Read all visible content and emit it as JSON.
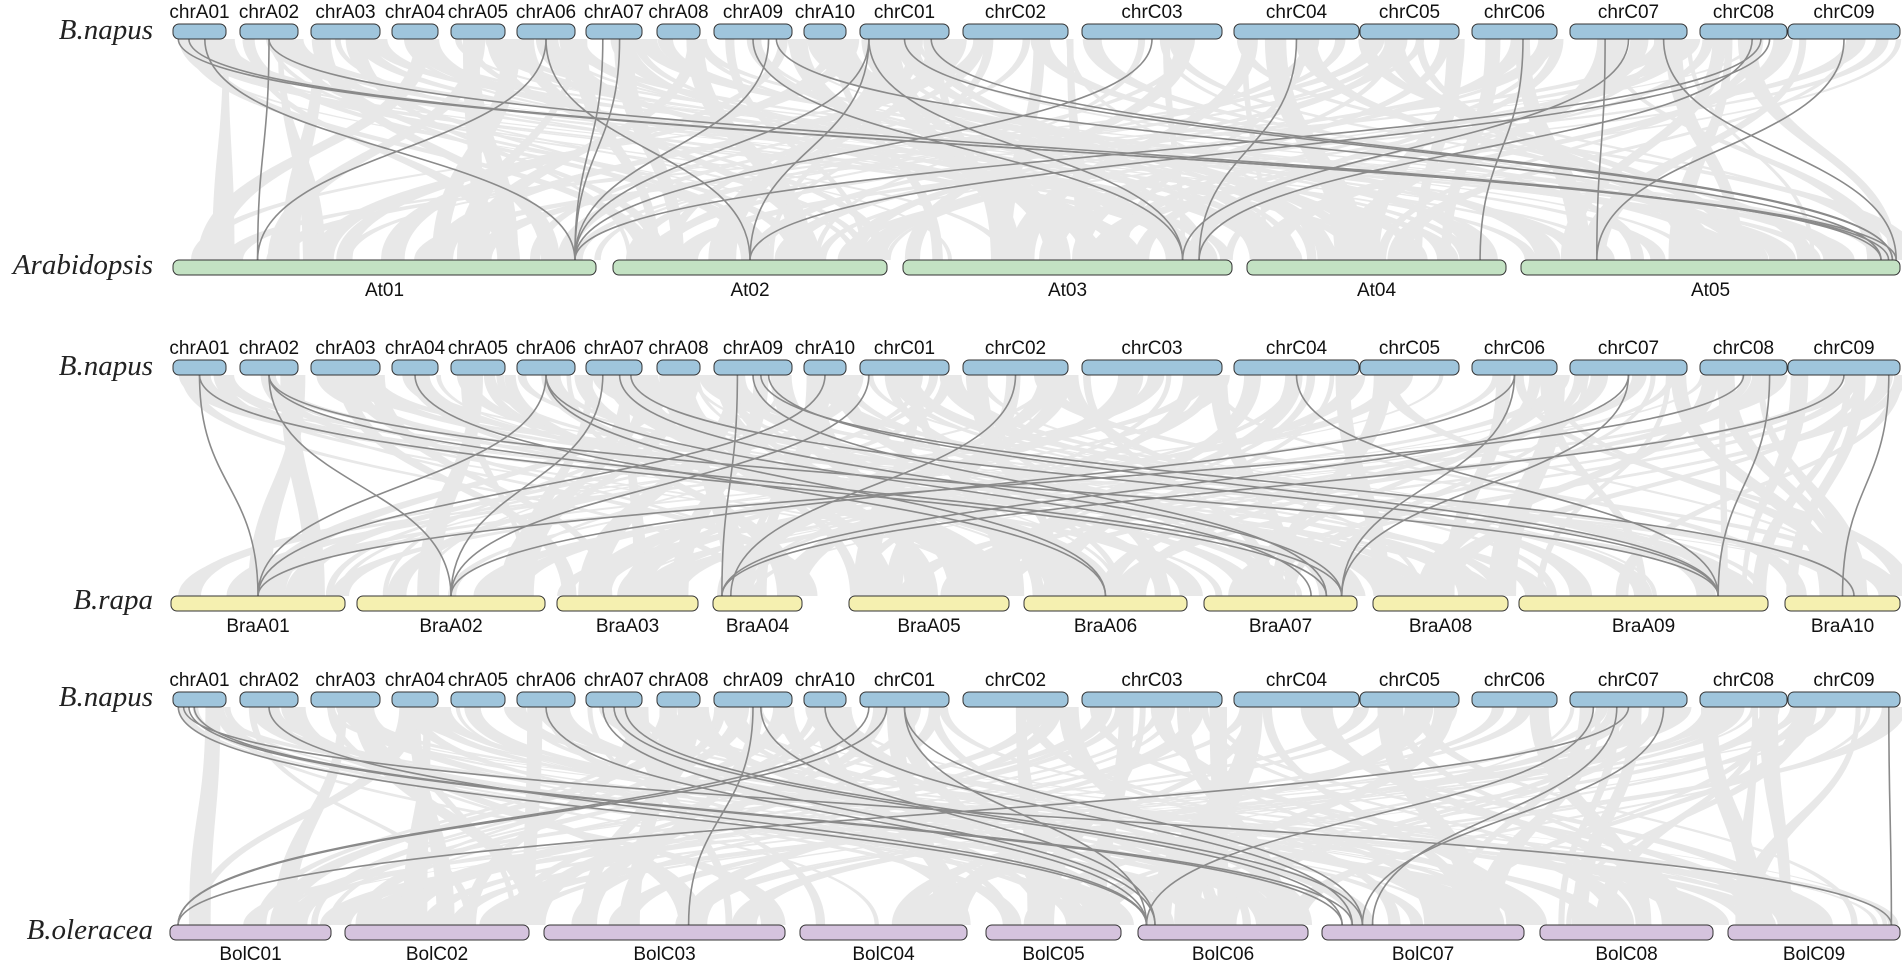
{
  "figure": {
    "type": "synteny-diagram",
    "colors": {
      "background_links": "#d9d9d9",
      "background_links_opacity": 0.6,
      "highlight_links": "#8a8a8a",
      "chr_outline": "#333333"
    },
    "panels": [
      {
        "top": {
          "species": "B.napus",
          "color": "#9fc5dc",
          "chromosomes": [
            "chrA01",
            "chrA02",
            "chrA03",
            "chrA04",
            "chrA05",
            "chrA06",
            "chrA07",
            "chrA08",
            "chrA09",
            "chrA10",
            "chrC01",
            "chrC02",
            "chrC03",
            "chrC04",
            "chrC05",
            "chrC06",
            "chrC07",
            "chrC08",
            "chrC09"
          ]
        },
        "bottom": {
          "species": "Arabidopsis",
          "color": "#c3e2c3",
          "chromosomes": [
            "At01",
            "At02",
            "At03",
            "At04",
            "At05"
          ]
        },
        "links": [
          [
            "chrA01",
            0.1,
            "At05",
            0.99
          ],
          [
            "chrA01",
            0.3,
            "At05",
            0.97
          ],
          [
            "chrA01",
            0.6,
            "At01",
            0.95
          ],
          [
            "chrA02",
            0.5,
            "At01",
            0.2
          ],
          [
            "chrA02",
            0.5,
            "At05",
            0.95
          ],
          [
            "chrA06",
            0.5,
            "At01",
            0.2
          ],
          [
            "chrA06",
            0.5,
            "At02",
            0.5
          ],
          [
            "chrA07",
            0.3,
            "At01",
            0.95
          ],
          [
            "chrA07",
            0.6,
            "At01",
            0.95
          ],
          [
            "chrA09",
            0.5,
            "At03",
            0.85
          ],
          [
            "chrA09",
            0.8,
            "At05",
            0.95
          ],
          [
            "chrC01",
            0.1,
            "At01",
            0.95
          ],
          [
            "chrC01",
            0.1,
            "At02",
            0.5
          ],
          [
            "chrC01",
            0.1,
            "At03",
            0.85
          ],
          [
            "chrC01",
            0.5,
            "At05",
            0.98
          ],
          [
            "chrC01",
            0.8,
            "At05",
            0.98
          ],
          [
            "chrC03",
            0.5,
            "At01",
            0.95
          ],
          [
            "chrC04",
            0.5,
            "At03",
            0.9
          ],
          [
            "chrC06",
            0.6,
            "At04",
            0.9
          ],
          [
            "chrC07",
            0.5,
            "At03",
            0.85
          ],
          [
            "chrC07",
            0.3,
            "At05",
            0.2
          ],
          [
            "chrC08",
            0.7,
            "At01",
            0.95
          ],
          [
            "chrC08",
            0.8,
            "At02",
            0.5
          ],
          [
            "chrC08",
            0.6,
            "At03",
            0.9
          ],
          [
            "chrC09",
            0.5,
            "At05",
            0.2
          ],
          [
            "chrA09",
            0.7,
            "At01",
            0.95
          ],
          [
            "chrC07",
            0.8,
            "At05",
            0.99
          ]
        ]
      },
      {
        "top": {
          "species": "B.napus",
          "color": "#9fc5dc",
          "chromosomes": [
            "chrA01",
            "chrA02",
            "chrA03",
            "chrA04",
            "chrA05",
            "chrA06",
            "chrA07",
            "chrA08",
            "chrA09",
            "chrA10",
            "chrC01",
            "chrC02",
            "chrC03",
            "chrC04",
            "chrC05",
            "chrC06",
            "chrC07",
            "chrC08",
            "chrC09"
          ]
        },
        "bottom": {
          "species": "B.rapa",
          "color": "#f5f0b0",
          "chromosomes": [
            "BraA01",
            "BraA02",
            "BraA03",
            "BraA04",
            "BraA05",
            "BraA06",
            "BraA07",
            "BraA08",
            "BraA09",
            "BraA10"
          ]
        },
        "links": [
          [
            "chrA01",
            0.5,
            "BraA01",
            0.5
          ],
          [
            "chrA01",
            0.5,
            "BraA07",
            0.8
          ],
          [
            "chrA02",
            0.5,
            "BraA02",
            0.5
          ],
          [
            "chrA02",
            0.5,
            "BraA07",
            0.9
          ],
          [
            "chrA02",
            0.5,
            "BraA09",
            0.8
          ],
          [
            "chrA06",
            0.5,
            "BraA01",
            0.5
          ],
          [
            "chrA06",
            0.5,
            "BraA06",
            0.5
          ],
          [
            "chrA06",
            0.5,
            "BraA07",
            0.7
          ],
          [
            "chrA07",
            0.3,
            "BraA02",
            0.5
          ],
          [
            "chrA07",
            0.6,
            "BraA07",
            0.9
          ],
          [
            "chrA07",
            0.8,
            "BraA09",
            0.8
          ],
          [
            "chrA09",
            0.3,
            "BraA04",
            0.1
          ],
          [
            "chrA09",
            0.5,
            "BraA07",
            0.8
          ],
          [
            "chrA09",
            0.7,
            "BraA09",
            0.8
          ],
          [
            "chrA10",
            0.5,
            "BraA01",
            0.5
          ],
          [
            "chrC01",
            0.1,
            "BraA02",
            0.5
          ],
          [
            "chrC02",
            0.5,
            "BraA04",
            0.2
          ],
          [
            "chrC04",
            0.5,
            "BraA09",
            0.8
          ],
          [
            "chrC06",
            0.5,
            "BraA02",
            0.5
          ],
          [
            "chrC06",
            0.5,
            "BraA07",
            0.9
          ],
          [
            "chrC07",
            0.5,
            "BraA04",
            0.1
          ],
          [
            "chrC07",
            0.5,
            "BraA07",
            0.9
          ],
          [
            "chrC08",
            0.5,
            "BraA01",
            0.5
          ],
          [
            "chrC08",
            0.8,
            "BraA09",
            0.8
          ],
          [
            "chrC09",
            0.5,
            "BraA04",
            0.1
          ],
          [
            "chrC09",
            0.9,
            "BraA10",
            0.5
          ],
          [
            "chrA04",
            0.5,
            "BraA06",
            0.5
          ],
          [
            "chrA09",
            0.6,
            "BraA10",
            0.6
          ]
        ]
      },
      {
        "top": {
          "species": "B.napus",
          "color": "#9fc5dc",
          "chromosomes": [
            "chrA01",
            "chrA02",
            "chrA03",
            "chrA04",
            "chrA05",
            "chrA06",
            "chrA07",
            "chrA08",
            "chrA09",
            "chrA10",
            "chrC01",
            "chrC02",
            "chrC03",
            "chrC04",
            "chrC05",
            "chrC06",
            "chrC07",
            "chrC08",
            "chrC09"
          ]
        },
        "bottom": {
          "species": "B.oleracea",
          "color": "#d5c3de",
          "chromosomes": [
            "BolC01",
            "BolC02",
            "BolC03",
            "BolC04",
            "BolC05",
            "BolC06",
            "BolC07",
            "BolC08",
            "BolC09"
          ]
        },
        "links": [
          [
            "chrA01",
            0.1,
            "BolC06",
            0.05
          ],
          [
            "chrA01",
            0.3,
            "BolC07",
            0.1
          ],
          [
            "chrA02",
            0.5,
            "BolC06",
            0.05
          ],
          [
            "chrA06",
            0.5,
            "BolC06",
            0.05
          ],
          [
            "chrA07",
            0.3,
            "BolC06",
            0.1
          ],
          [
            "chrA07",
            0.5,
            "BolC07",
            0.1
          ],
          [
            "chrA07",
            0.7,
            "BolC07",
            0.2
          ],
          [
            "chrA09",
            0.5,
            "BolC03",
            0.6
          ],
          [
            "chrA10",
            0.5,
            "BolC07",
            0.15
          ],
          [
            "chrC01",
            0.1,
            "BolC01",
            0.05
          ],
          [
            "chrC01",
            0.5,
            "BolC06",
            0.05
          ],
          [
            "chrC01",
            0.5,
            "BolC07",
            0.2
          ],
          [
            "chrC07",
            0.5,
            "BolC01",
            0.05
          ],
          [
            "chrC07",
            0.2,
            "BolC06",
            0.05
          ],
          [
            "chrC07",
            0.8,
            "BolC07",
            0.2
          ],
          [
            "chrC07",
            0.4,
            "BolC07",
            0.25
          ],
          [
            "chrC09",
            0.9,
            "BolC09",
            0.95
          ],
          [
            "chrA01",
            0.2,
            "BolC09",
            0.95
          ],
          [
            "chrA01",
            0.4,
            "BolC07",
            0.15
          ],
          [
            "chrA09",
            0.6,
            "BolC06",
            0.1
          ],
          [
            "chrC01",
            0.3,
            "BolC01",
            0.05
          ]
        ]
      }
    ]
  }
}
